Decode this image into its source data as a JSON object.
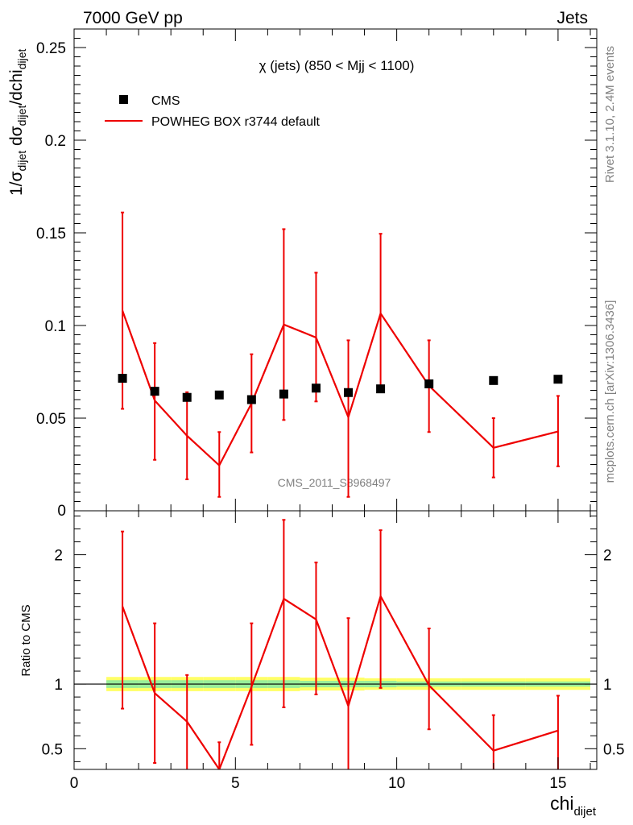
{
  "header": {
    "energy_label": "7000 GeV pp",
    "process_label": "Jets"
  },
  "side_labels": {
    "rivet": "Rivet 3.1.10,  2.4M events",
    "source": "mcplots.cern.ch [arXiv:1306.3436]"
  },
  "watermark": "CMS_2011_S8968497",
  "colors": {
    "data": "#000000",
    "mc": "#ee0000",
    "band_inner": "#99ee99",
    "band_outer": "#ffff66"
  },
  "chart_data": [
    {
      "type": "scatter",
      "title": "χ (jets) (850 < Mjj < 1100)",
      "ylabel": "1/σdijet dσdijet/dchidijet",
      "xlabel": "chidijet",
      "xlim": [
        0,
        16.2
      ],
      "ylim": [
        0,
        0.26
      ],
      "xticks": [
        0,
        5,
        10,
        15
      ],
      "yticks": [
        0.05,
        0.1,
        0.15,
        0.2,
        0.25
      ],
      "ytick_labels": [
        "0.05",
        "0.1",
        "0.15",
        "0.2",
        "0.25"
      ],
      "xtick_labels": [
        "0",
        "5",
        "10",
        "15"
      ],
      "y_origin_label": "0",
      "legend": {
        "placement": "top-left",
        "entries": [
          "CMS",
          "POWHEG BOX r3744 default"
        ]
      },
      "series": [
        {
          "name": "CMS",
          "marker": "square",
          "x": [
            1.5,
            2.5,
            3.5,
            4.5,
            5.5,
            6.5,
            7.5,
            8.5,
            9.5,
            11,
            13,
            15
          ],
          "y": [
            0.0715,
            0.0645,
            0.0612,
            0.0625,
            0.06,
            0.063,
            0.0662,
            0.0638,
            0.0658,
            0.0685,
            0.0703,
            0.071
          ]
        },
        {
          "name": "POWHEG BOX r3744 default",
          "line": true,
          "x": [
            1.5,
            2.5,
            3.5,
            4.5,
            5.5,
            6.5,
            7.5,
            8.5,
            9.5,
            11,
            13,
            15
          ],
          "y": [
            0.108,
            0.0595,
            0.0405,
            0.0245,
            0.058,
            0.1005,
            0.0935,
            0.0505,
            0.1065,
            0.0675,
            0.034,
            0.0428
          ],
          "yerr_low": [
            0.055,
            0.0275,
            0.017,
            0.0075,
            0.0315,
            0.049,
            0.059,
            0.0075,
            0.064,
            0.0425,
            0.018,
            0.024
          ],
          "yerr_high": [
            0.161,
            0.0905,
            0.064,
            0.0425,
            0.0845,
            0.152,
            0.1285,
            0.092,
            0.1495,
            0.092,
            0.05,
            0.062
          ]
        }
      ]
    },
    {
      "type": "line",
      "ylabel": "Ratio to CMS",
      "xlim": [
        0,
        16.2
      ],
      "ylim": [
        0.34,
        2.34
      ],
      "yticks": [
        0.5,
        1,
        2
      ],
      "ytick_labels": [
        "0.5",
        "1",
        "2"
      ],
      "reference_line": 1,
      "band": {
        "x_edges": [
          1,
          2,
          3,
          4,
          5,
          6,
          7,
          8,
          9,
          10,
          12,
          14,
          16
        ],
        "inner": [
          0.03,
          0.03,
          0.03,
          0.03,
          0.03,
          0.03,
          0.025,
          0.025,
          0.025,
          0.02,
          0.02,
          0.02
        ],
        "outer": [
          0.055,
          0.055,
          0.055,
          0.055,
          0.055,
          0.055,
          0.05,
          0.05,
          0.045,
          0.045,
          0.045,
          0.045
        ]
      },
      "series": [
        {
          "name": "POWHEG BOX r3744 default",
          "x": [
            1.5,
            2.5,
            3.5,
            4.5,
            5.5,
            6.5,
            7.5,
            8.5,
            9.5,
            11,
            13,
            15
          ],
          "y": [
            1.6,
            0.93,
            0.71,
            0.34,
            0.98,
            1.66,
            1.5,
            0.83,
            1.68,
            0.99,
            0.485,
            0.64
          ],
          "yerr_low": [
            0.81,
            0.39,
            0.33,
            0.33,
            0.53,
            0.82,
            0.92,
            0.33,
            0.97,
            0.65,
            0.33,
            0.33
          ],
          "yerr_high": [
            2.18,
            1.47,
            1.07,
            0.55,
            1.47,
            2.27,
            1.94,
            1.51,
            2.19,
            1.43,
            0.76,
            0.91
          ]
        }
      ]
    }
  ]
}
